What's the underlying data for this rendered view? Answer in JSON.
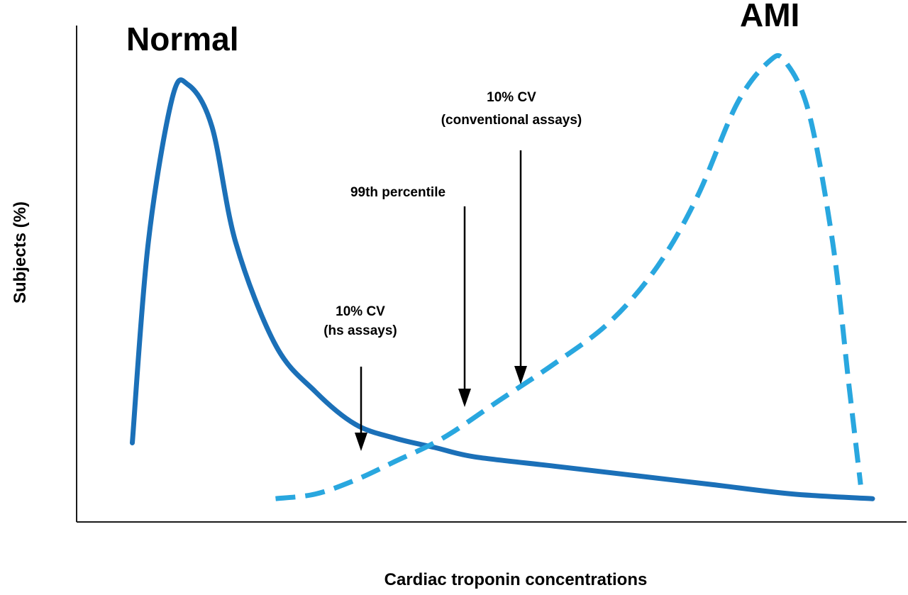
{
  "chart_data": {
    "type": "line",
    "title": "",
    "xlabel": "Cardiac troponin concentrations",
    "ylabel": "Subjects (%)",
    "axis_ticks": "none",
    "grid": false,
    "legend": "none",
    "series": [
      {
        "name": "Normal",
        "style": "solid",
        "color": "#1b70b8",
        "points": [
          [
            0.07,
            0.17
          ],
          [
            0.09,
            0.6
          ],
          [
            0.12,
            0.91
          ],
          [
            0.14,
            0.94
          ],
          [
            0.17,
            0.85
          ],
          [
            0.2,
            0.6
          ],
          [
            0.25,
            0.38
          ],
          [
            0.3,
            0.28
          ],
          [
            0.35,
            0.21
          ],
          [
            0.4,
            0.18
          ],
          [
            0.45,
            0.16
          ],
          [
            0.5,
            0.14
          ],
          [
            0.6,
            0.12
          ],
          [
            0.7,
            0.1
          ],
          [
            0.8,
            0.08
          ],
          [
            0.9,
            0.06
          ],
          [
            1.0,
            0.05
          ]
        ]
      },
      {
        "name": "AMI",
        "style": "dashed",
        "color": "#29a7df",
        "points": [
          [
            0.25,
            0.05
          ],
          [
            0.3,
            0.06
          ],
          [
            0.35,
            0.09
          ],
          [
            0.4,
            0.13
          ],
          [
            0.46,
            0.18
          ],
          [
            0.53,
            0.26
          ],
          [
            0.6,
            0.34
          ],
          [
            0.67,
            0.43
          ],
          [
            0.73,
            0.55
          ],
          [
            0.78,
            0.7
          ],
          [
            0.83,
            0.9
          ],
          [
            0.87,
            0.99
          ],
          [
            0.89,
            0.99
          ],
          [
            0.92,
            0.88
          ],
          [
            0.95,
            0.6
          ],
          [
            0.97,
            0.3
          ],
          [
            0.985,
            0.08
          ]
        ]
      }
    ],
    "annotations": [
      {
        "id": "hs",
        "lines": [
          "10% CV",
          "(hs assays)"
        ],
        "x": 0.31
      },
      {
        "id": "p99",
        "lines": [
          "99th percentile"
        ],
        "x": 0.45
      },
      {
        "id": "conv",
        "lines": [
          "10% CV",
          "(conventional assays)"
        ],
        "x": 0.53
      }
    ]
  }
}
